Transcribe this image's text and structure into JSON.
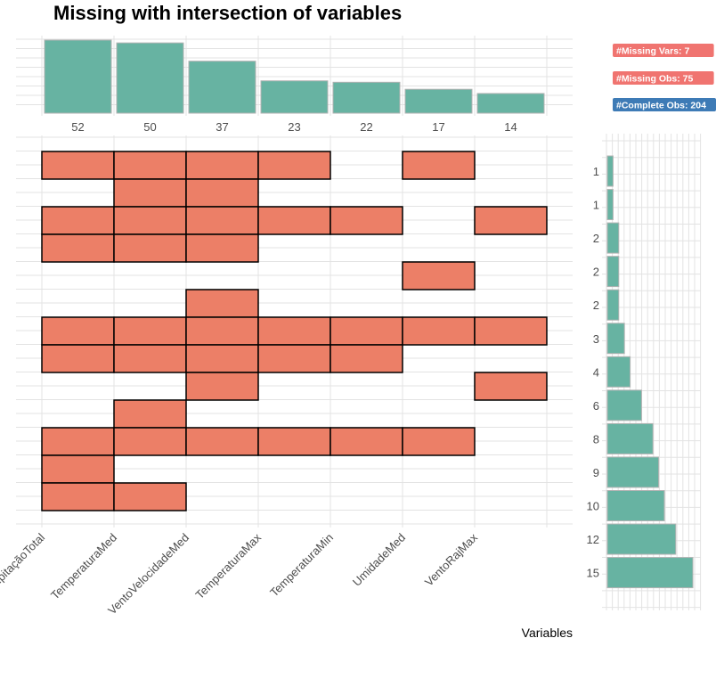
{
  "chart_data": {
    "type": "upset",
    "title": "Missing with intersection of variables",
    "xlabel": "Variables",
    "variables": [
      "PrecipitaçãoTotal",
      "TemperaturaMed",
      "VentoVelocidadeMed",
      "TemperaturaMax",
      "TemperaturaMin",
      "UmidadeMed",
      "VentoRajMax"
    ],
    "missing_per_variable": [
      52,
      50,
      37,
      23,
      22,
      17,
      14
    ],
    "combinations": [
      {
        "vars": [
          0,
          1,
          2,
          3,
          5
        ],
        "count": 1
      },
      {
        "vars": [
          1,
          2
        ],
        "count": 1
      },
      {
        "vars": [
          0,
          1,
          2,
          3,
          4,
          6
        ],
        "count": 2
      },
      {
        "vars": [
          0,
          1,
          2
        ],
        "count": 2
      },
      {
        "vars": [
          5
        ],
        "count": 2
      },
      {
        "vars": [
          2
        ],
        "count": 3
      },
      {
        "vars": [
          0,
          1,
          2,
          3,
          4,
          5,
          6
        ],
        "count": 4
      },
      {
        "vars": [
          0,
          1,
          2,
          3,
          4
        ],
        "count": 6
      },
      {
        "vars": [
          2,
          6
        ],
        "count": 8
      },
      {
        "vars": [
          1
        ],
        "count": 9
      },
      {
        "vars": [
          0,
          1,
          2,
          3,
          4,
          5
        ],
        "count": 10
      },
      {
        "vars": [
          0
        ],
        "count": 12
      },
      {
        "vars": [
          0,
          1
        ],
        "count": 15
      }
    ],
    "badges": [
      {
        "label": "#Missing Vars: 7",
        "color": "#f07470"
      },
      {
        "label": "#Missing Obs: 75",
        "color": "#f07470"
      },
      {
        "label": "#Complete Obs: 204",
        "color": "#3e7bb6"
      }
    ],
    "colors": {
      "bar": "#67b3a2",
      "tile": "#ec7f67",
      "tile_border": "#000000",
      "grid": "#e3e3e3"
    }
  }
}
